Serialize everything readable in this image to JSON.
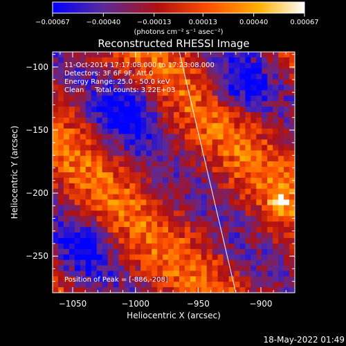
{
  "chart_data": {
    "type": "heatmap",
    "title": "Reconstructed RHESSI Image",
    "xlabel": "Heliocentric X (arcsec)",
    "ylabel": "Heliocentric Y (arcsec)",
    "xlim": [
      -1066,
      -873
    ],
    "ylim": [
      -279,
      -88
    ],
    "x_ticks": [
      -1050,
      -1000,
      -950,
      -900
    ],
    "x_tick_labels": [
      "−1050",
      "−1000",
      "−950",
      "−900"
    ],
    "y_ticks": [
      -100,
      -150,
      -200,
      -250
    ],
    "y_tick_labels": [
      "−100",
      "−150",
      "−200",
      "−250"
    ],
    "colorbar": {
      "min": -0.00067,
      "max": 0.00067,
      "ticks": [
        -0.00067,
        -0.0004,
        -0.00013,
        0.00013,
        0.0004,
        0.00067
      ],
      "tick_labels": [
        "−0.00067",
        "−0.00040",
        "−0.00013",
        "0.00013",
        "0.00040",
        "0.00067"
      ],
      "units_label": "(photons cm⁻² s⁻¹ asec⁻²)",
      "colors": [
        "#0000ff",
        "#5a2a9a",
        "#b01010",
        "#ff5000",
        "#ffb000",
        "#ffffff"
      ]
    },
    "annotations": [
      "11-Oct-2014 17:17:08.000 to 17:23:08.000",
      "Detectors: 3F 6F 9F, Att 0",
      "Energy Range: 25.0 - 50.0 keV",
      "Clean     Total counts: 3.22E+03",
      "Position of Peak = [-886,-208]"
    ],
    "peak": [
      -886,
      -208
    ],
    "limb_line": [
      [
        -965,
        -88
      ],
      [
        -920,
        -279
      ]
    ],
    "footer_timestamp": "18-May-2022 01:49"
  }
}
